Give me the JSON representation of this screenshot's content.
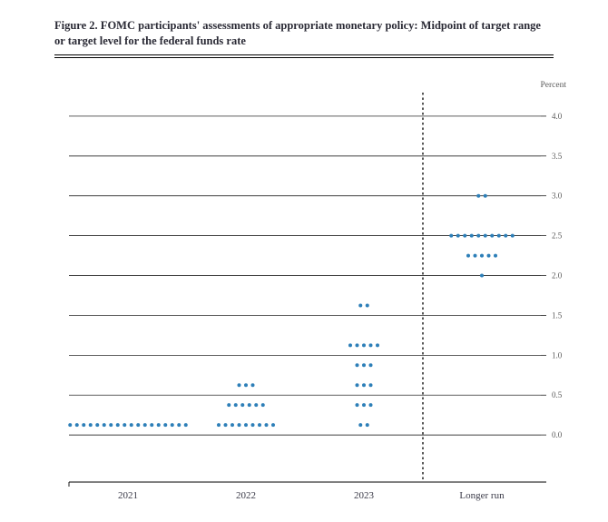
{
  "title": "Figure 2.  FOMC participants' assessments of appropriate monetary policy:  Midpoint of target range or target level for the federal funds rate",
  "axis_label": "Percent",
  "chart": {
    "type": "dotplot",
    "y": {
      "min": -0.5,
      "max": 4.25,
      "ticks": [
        0.0,
        0.5,
        1.0,
        1.5,
        2.0,
        2.5,
        3.0,
        3.5,
        4.0
      ],
      "tick_labels": [
        "0.0",
        "0.5",
        "1.0",
        "1.5",
        "2.0",
        "2.5",
        "3.0",
        "3.5",
        "4.0"
      ]
    },
    "grid_extents_tick": [
      0.22,
      0.22,
      0.22,
      0.22,
      0.22,
      0.3,
      0.3,
      0.3,
      0.22
    ],
    "solid_levels": [
      0.0,
      0.5,
      1.0,
      1.5,
      2.0,
      2.5,
      3.0,
      3.5,
      4.0
    ],
    "panels": [
      {
        "label": "2021",
        "separator_after": false
      },
      {
        "label": "2022",
        "separator_after": false
      },
      {
        "label": "2023",
        "separator_after": true
      },
      {
        "label": "Longer run",
        "separator_after": false
      }
    ],
    "points": {
      "2021": [
        {
          "rate": 0.125,
          "n": 18
        }
      ],
      "2022": [
        {
          "rate": 0.125,
          "n": 9
        },
        {
          "rate": 0.375,
          "n": 6
        },
        {
          "rate": 0.625,
          "n": 3
        }
      ],
      "2023": [
        {
          "rate": 0.125,
          "n": 2
        },
        {
          "rate": 0.375,
          "n": 3
        },
        {
          "rate": 0.625,
          "n": 3
        },
        {
          "rate": 0.875,
          "n": 3
        },
        {
          "rate": 1.125,
          "n": 5
        },
        {
          "rate": 1.625,
          "n": 2
        }
      ],
      "Longer run": [
        {
          "rate": 2.0,
          "n": 1
        },
        {
          "rate": 2.25,
          "n": 5
        },
        {
          "rate": 2.5,
          "n": 10
        },
        {
          "rate": 3.0,
          "n": 2
        }
      ]
    },
    "colors": {
      "marker": "#2d7fb8",
      "grid": "#000000",
      "axis": "#000000",
      "separator": "#000000",
      "tick_label": "#5a5a5a",
      "axis_label": "#5a5a5a",
      "panel_label": "#3a3a48",
      "background": "#ffffff"
    },
    "sizes": {
      "marker_radius": 2.0,
      "tick_font": 9,
      "axis_label_font": 9.5,
      "panel_label_font": 11
    }
  }
}
